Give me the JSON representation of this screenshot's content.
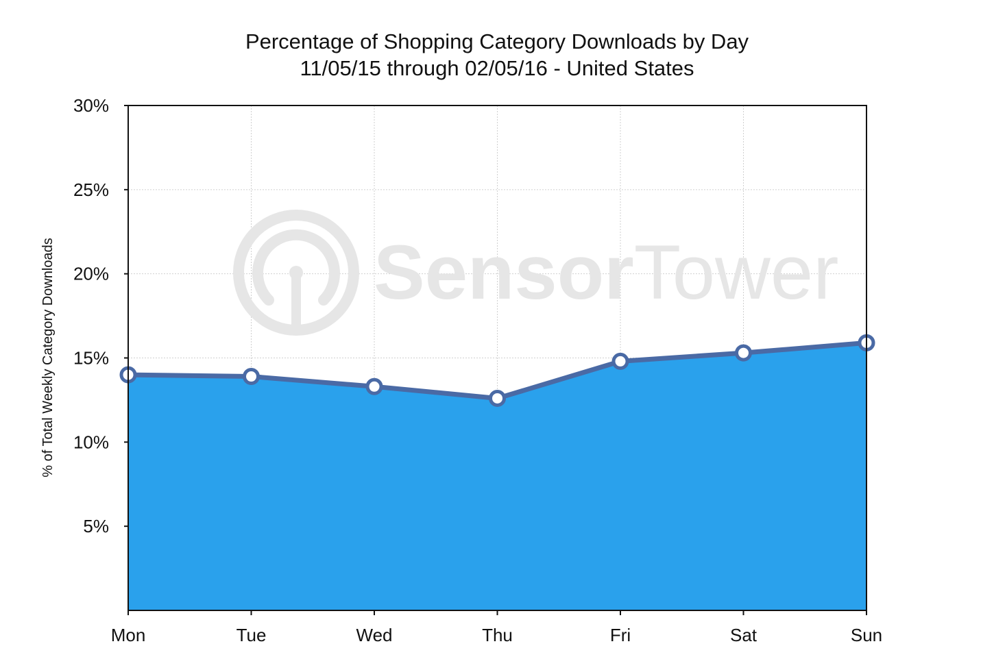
{
  "chart_data": {
    "type": "area",
    "title": "Percentage of Shopping Category Downloads by Day",
    "subtitle": "11/05/15 through 02/05/16 - United States",
    "xlabel": "",
    "ylabel": "% of Total Weekly Category Downloads",
    "categories": [
      "Mon",
      "Tue",
      "Wed",
      "Thu",
      "Fri",
      "Sat",
      "Sun"
    ],
    "values": [
      14.0,
      13.9,
      13.3,
      12.6,
      14.8,
      15.3,
      15.9
    ],
    "ylim": [
      0,
      30
    ],
    "yticks": [
      5,
      10,
      15,
      20,
      25,
      30
    ],
    "ytick_labels": [
      "5%",
      "10%",
      "15%",
      "20%",
      "25%",
      "30%"
    ],
    "grid": true,
    "colors": {
      "fill": "#2aa1ec",
      "line": "#4a6aa5",
      "marker_fill": "#ffffff",
      "grid": "#cfcfcf",
      "axis": "#111111"
    }
  },
  "watermark": {
    "brand_bold": "Sensor",
    "brand_light": "Tower",
    "icon": "sensortower-logo-icon",
    "color": "#e6e6e6"
  }
}
